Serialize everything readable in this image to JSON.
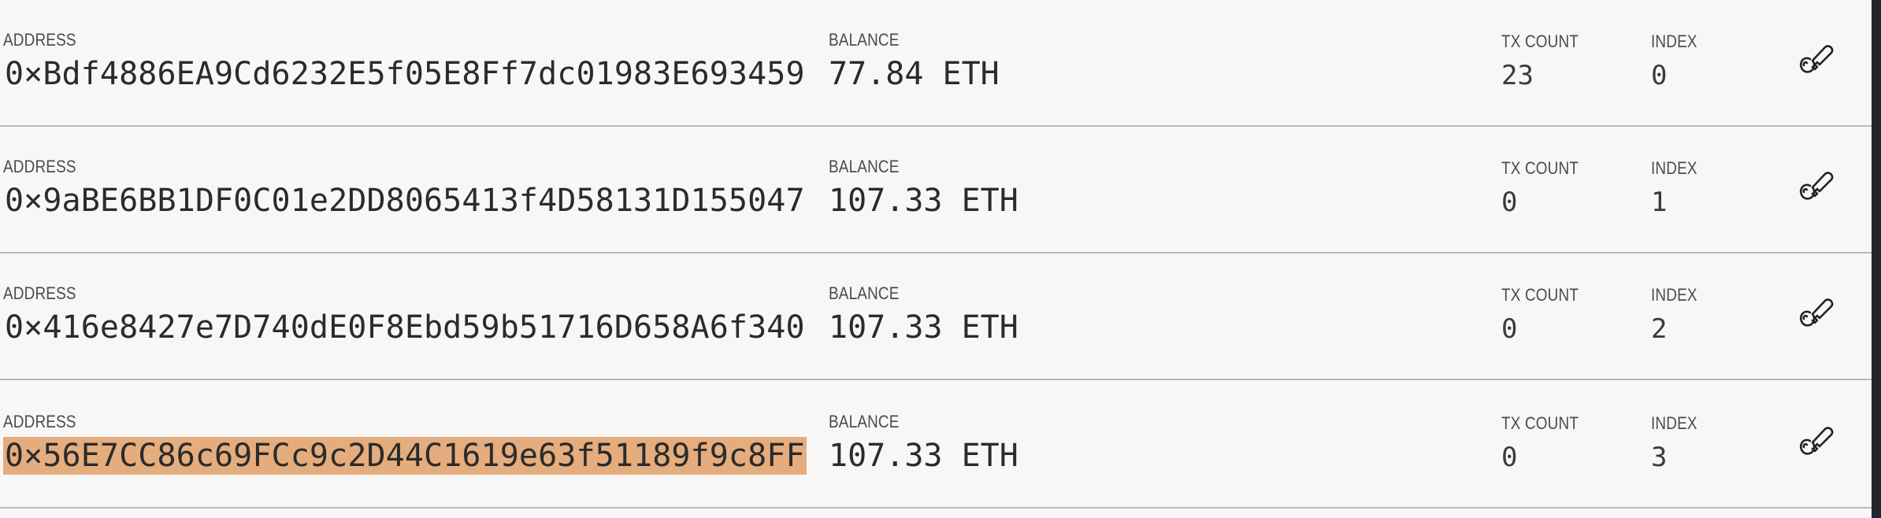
{
  "labels": {
    "address": "ADDRESS",
    "balance": "BALANCE",
    "tx_count": "TX COUNT",
    "index": "INDEX"
  },
  "accounts": [
    {
      "address": "0×Bdf4886EA9Cd6232E5f05E8Ff7dc01983E693459",
      "balance": "77.84 ETH",
      "tx_count": "23",
      "index": "0"
    },
    {
      "address": "0×9aBE6BB1DF0C01e2DD8065413f4D58131D155047",
      "balance": "107.33 ETH",
      "tx_count": "0",
      "index": "1"
    },
    {
      "address": "0×416e8427e7D740dE0F8Ebd59b51716D658A6f340",
      "balance": "107.33 ETH",
      "tx_count": "0",
      "index": "2"
    },
    {
      "address": "0×56E7CC86c69FCc9c2D44C1619e63f51189f9c8FF",
      "balance": "107.33 ETH",
      "tx_count": "0",
      "index": "3",
      "selected": true
    }
  ],
  "icons": {
    "key": "key-icon"
  },
  "colors": {
    "background": "#f8f7f6",
    "selection_highlight": "#e5ad7e",
    "divider": "#b8b8b8",
    "dark_edge": "#23252d"
  }
}
